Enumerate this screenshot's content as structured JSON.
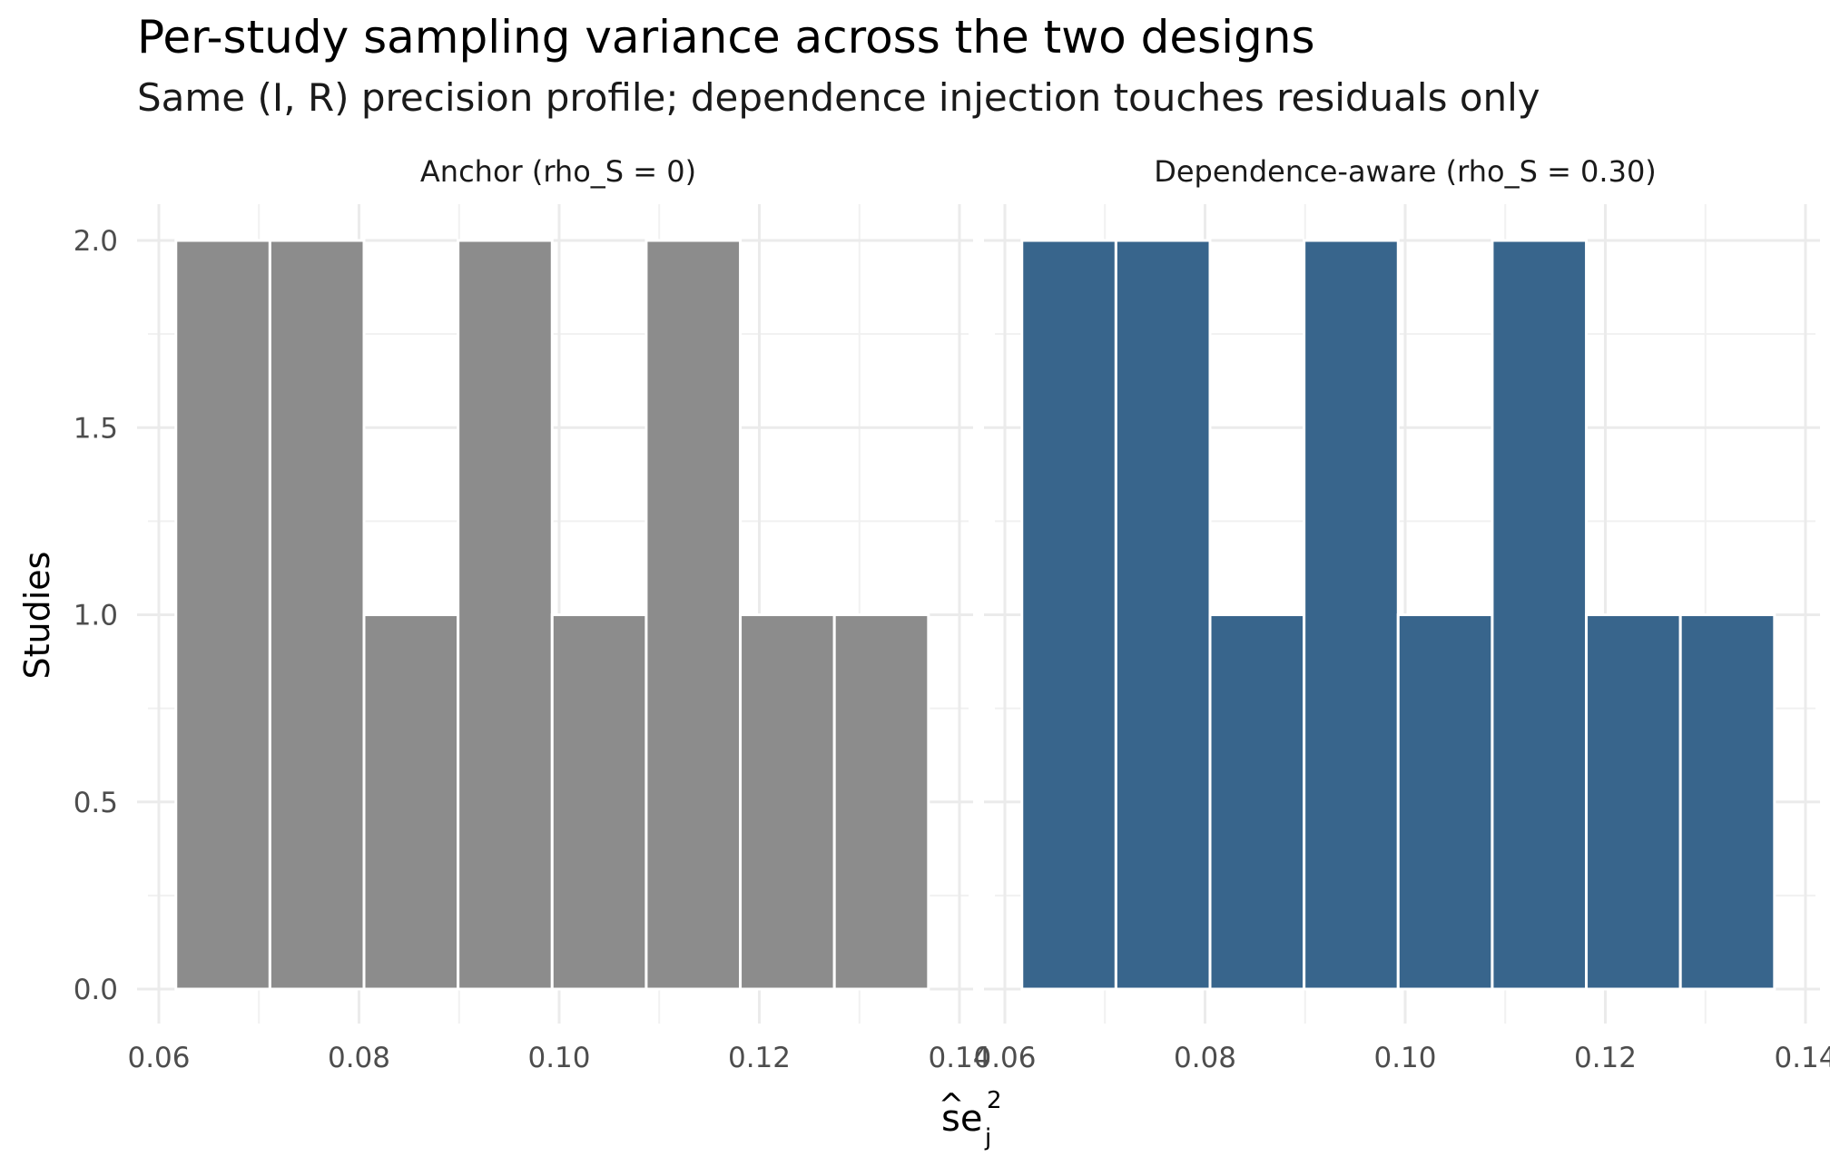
{
  "chart_data": {
    "type": "bar",
    "title": "Per-study sampling variance across the two designs",
    "subtitle": "Same (I, R) precision profile; dependence injection touches residuals only",
    "xlabel": {
      "base": "se",
      "subscript": "j",
      "superscript": "2"
    },
    "ylabel": "Studies",
    "xlim": [
      0.06,
      0.14
    ],
    "ylim": [
      0,
      2
    ],
    "x_ticks": [
      "0.06",
      "0.08",
      "0.10",
      "0.12",
      "0.14"
    ],
    "y_ticks": [
      "0.0",
      "0.5",
      "1.0",
      "1.5",
      "2.0"
    ],
    "grid": true,
    "bin_edges": [
      0.0617,
      0.0711,
      0.0805,
      0.0899,
      0.0993,
      0.1087,
      0.1181,
      0.1275,
      0.1369
    ],
    "panels": [
      {
        "label": "Anchor (rho_S = 0)",
        "color": "#8c8c8c",
        "counts": [
          2,
          2,
          1,
          2,
          1,
          2,
          1,
          1
        ]
      },
      {
        "label": "Dependence-aware (rho_S = 0.30)",
        "color": "#38658c",
        "counts": [
          2,
          2,
          1,
          2,
          1,
          2,
          1,
          1
        ]
      }
    ]
  }
}
